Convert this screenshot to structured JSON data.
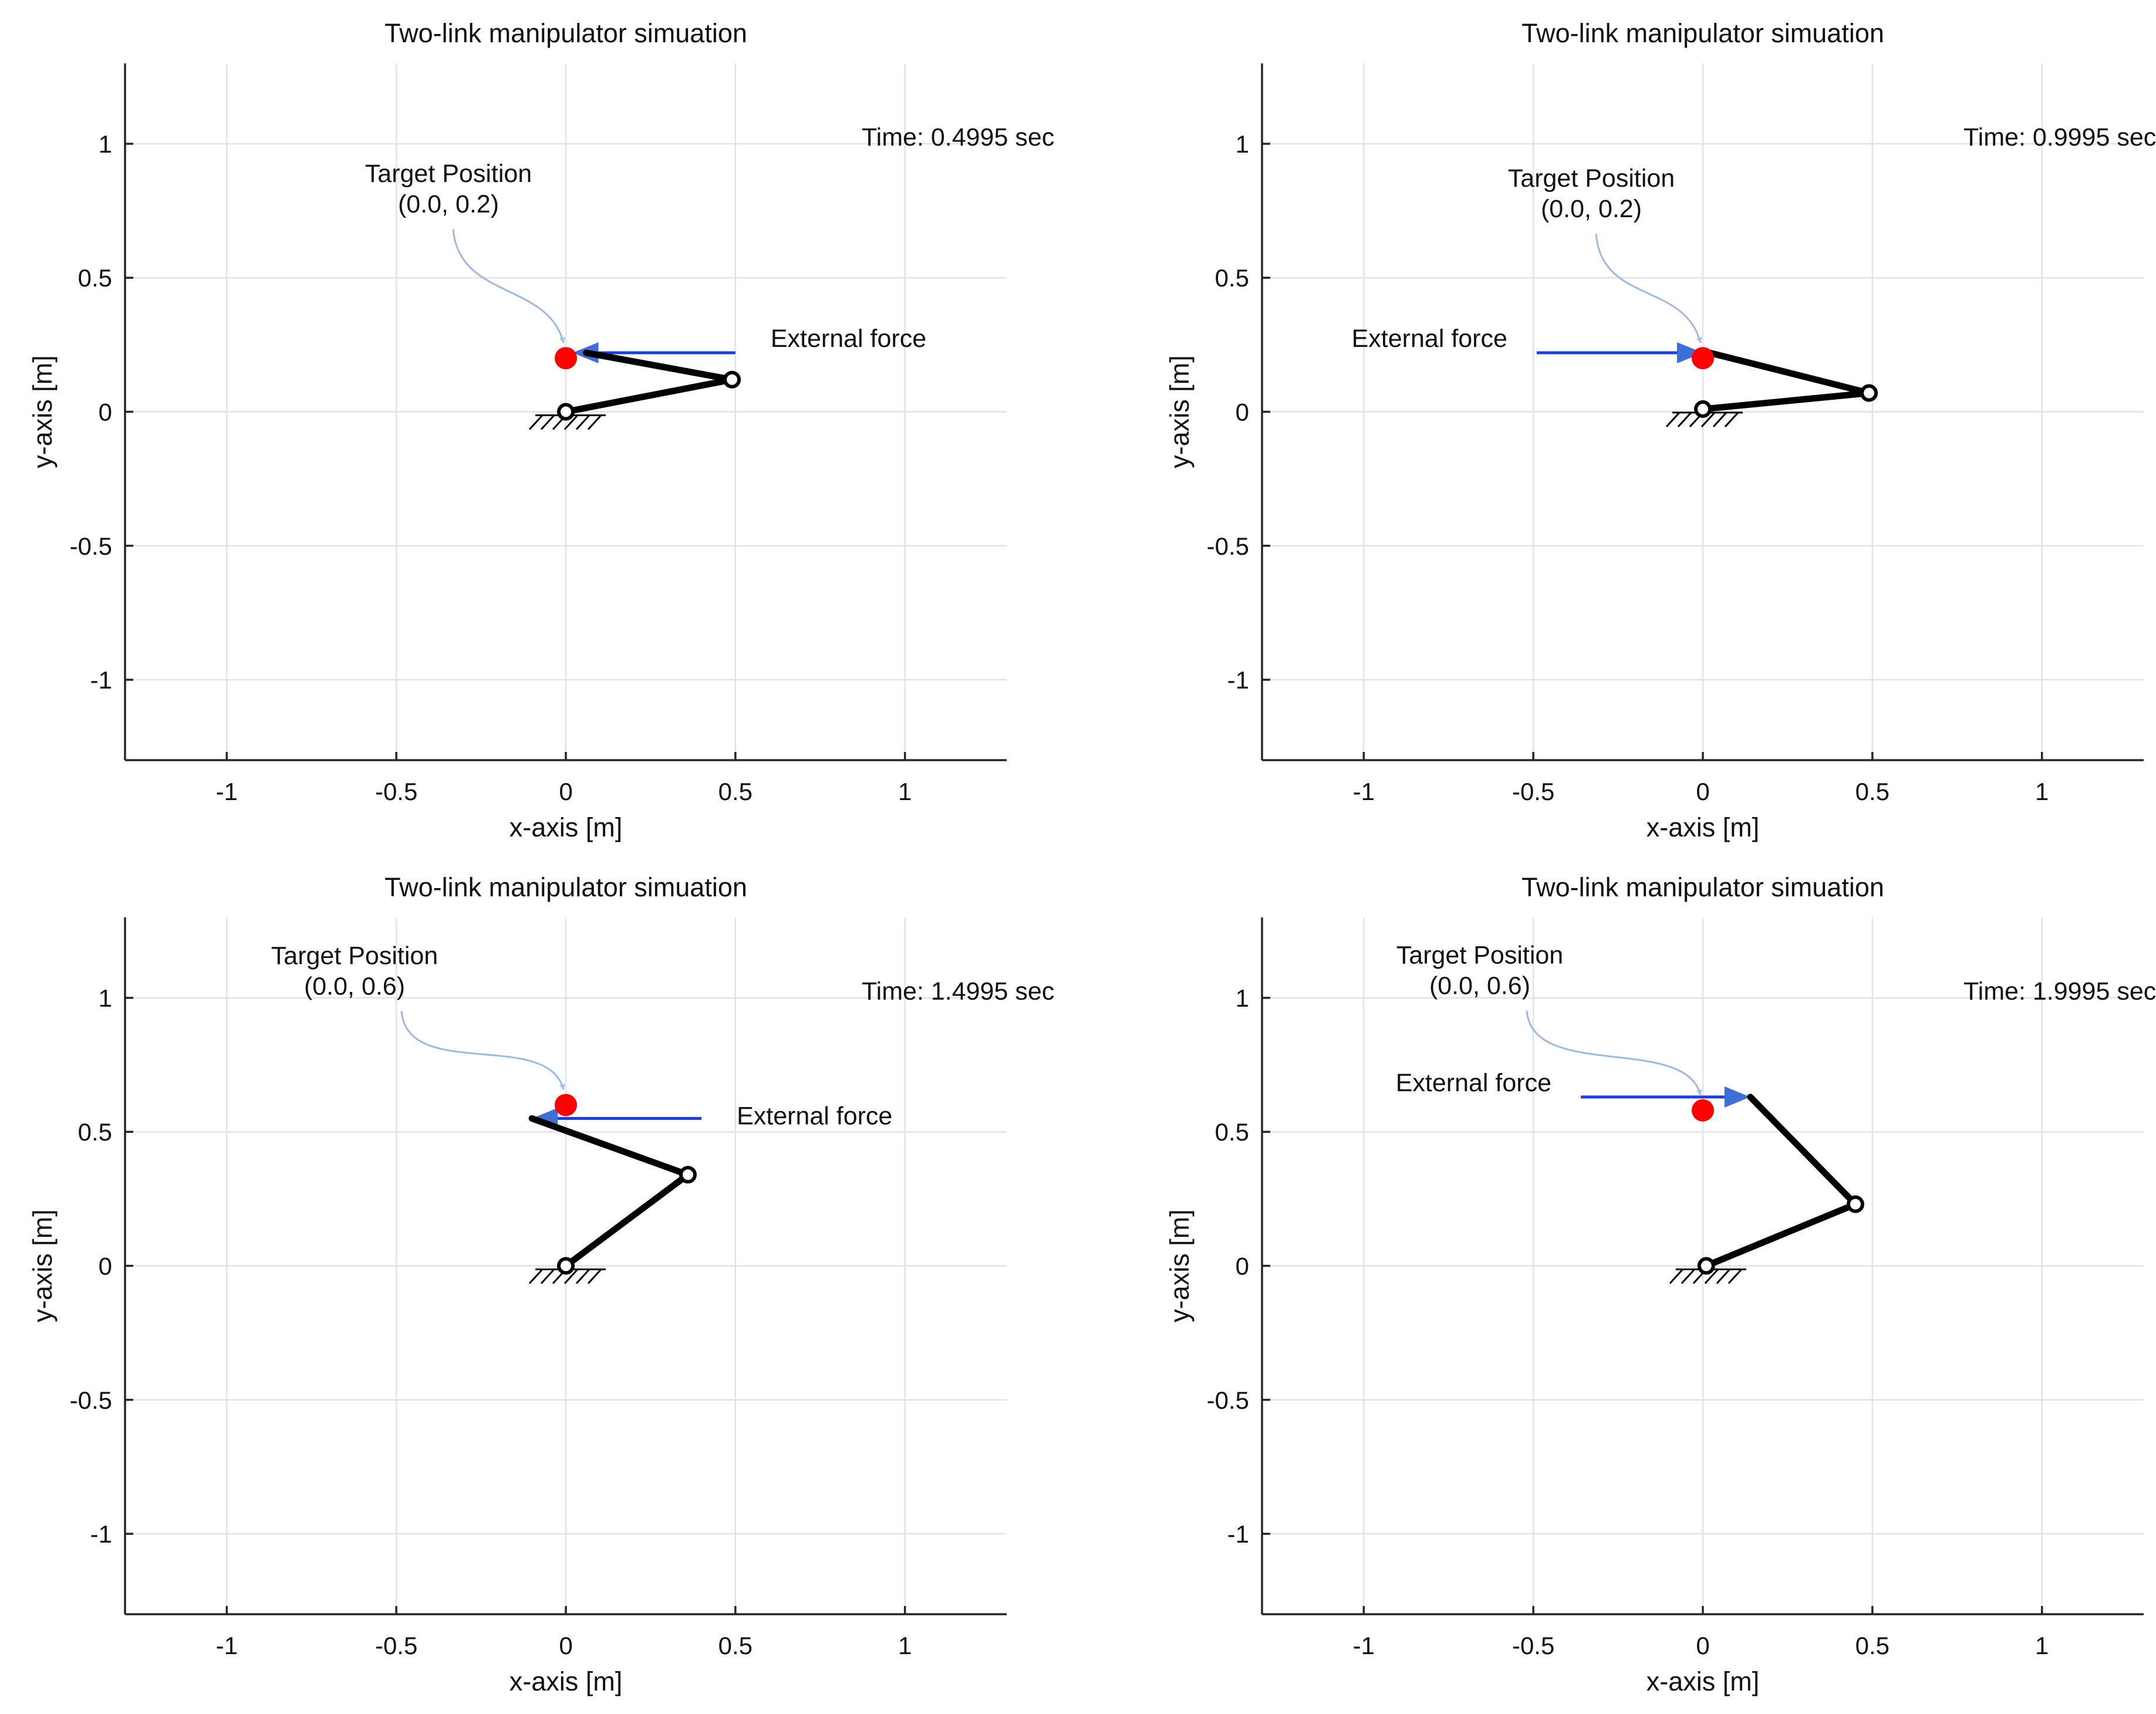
{
  "figure": {
    "title": "Two-link manipulator simuation"
  },
  "chart_data": [
    {
      "type": "line",
      "title": "Two-link manipulator simuation",
      "xlabel": "x-axis [m]",
      "ylabel": "y-axis [m]",
      "xlim": [
        -1.3,
        1.3
      ],
      "ylim": [
        -1.3,
        1.3
      ],
      "xticks": [
        -1,
        -0.5,
        0,
        0.5,
        1
      ],
      "yticks": [
        -1,
        -0.5,
        0,
        0.5,
        1
      ],
      "xtick_labels": [
        "-1",
        "-0.5",
        "0",
        "0.5",
        "1"
      ],
      "ytick_labels": [
        "-1",
        "-0.5",
        "0",
        "0.5",
        "1"
      ],
      "grid": true,
      "time_label": "Time: 0.4995 sec",
      "base": [
        0.0,
        0.0
      ],
      "joint": [
        0.49,
        0.12
      ],
      "end_effector": [
        0.06,
        0.22
      ],
      "target": {
        "x": 0.0,
        "y": 0.2,
        "label": "Target Position",
        "coords_label": "(0.0, 0.2)"
      },
      "force": {
        "from": [
          0.5,
          0.22
        ],
        "to": [
          0.02,
          0.22
        ],
        "label": "External force",
        "label_side": "right"
      }
    },
    {
      "type": "line",
      "title": "Two-link manipulator simuation",
      "xlabel": "x-axis [m]",
      "ylabel": "y-axis [m]",
      "xlim": [
        -1.3,
        1.3
      ],
      "ylim": [
        -1.3,
        1.3
      ],
      "xticks": [
        -1,
        -0.5,
        0,
        0.5,
        1
      ],
      "yticks": [
        -1,
        -0.5,
        0,
        0.5,
        1
      ],
      "xtick_labels": [
        "-1",
        "-0.5",
        "0",
        "0.5",
        "1"
      ],
      "ytick_labels": [
        "-1",
        "-0.5",
        "0",
        "0.5",
        "1"
      ],
      "grid": true,
      "time_label": "Time: 0.9995 sec",
      "base": [
        0.0,
        0.01
      ],
      "joint": [
        0.49,
        0.07
      ],
      "end_effector": [
        0.02,
        0.22
      ],
      "target": {
        "x": 0.0,
        "y": 0.2,
        "label": "Target Position",
        "coords_label": "(0.0, 0.2)"
      },
      "force": {
        "from": [
          -0.49,
          0.22
        ],
        "to": [
          0.0,
          0.22
        ],
        "label": "External force",
        "label_side": "left"
      }
    },
    {
      "type": "line",
      "title": "Two-link manipulator simuation",
      "xlabel": "x-axis [m]",
      "ylabel": "y-axis [m]",
      "xlim": [
        -1.3,
        1.3
      ],
      "ylim": [
        -1.3,
        1.3
      ],
      "xticks": [
        -1,
        -0.5,
        0,
        0.5,
        1
      ],
      "yticks": [
        -1,
        -0.5,
        0,
        0.5,
        1
      ],
      "xtick_labels": [
        "-1",
        "-0.5",
        "0",
        "0.5",
        "1"
      ],
      "ytick_labels": [
        "-1",
        "-0.5",
        "0",
        "0.5",
        "1"
      ],
      "grid": true,
      "time_label": "Time: 1.4995 sec",
      "base": [
        0.0,
        0.0
      ],
      "joint": [
        0.36,
        0.34
      ],
      "end_effector": [
        -0.1,
        0.55
      ],
      "target": {
        "x": 0.0,
        "y": 0.6,
        "label": "Target Position",
        "coords_label": "(0.0, 0.6)"
      },
      "force": {
        "from": [
          0.4,
          0.55
        ],
        "to": [
          -0.1,
          0.55
        ],
        "label": "External force",
        "label_side": "right"
      }
    },
    {
      "type": "line",
      "title": "Two-link manipulator simuation",
      "xlabel": "x-axis [m]",
      "ylabel": "y-axis [m]",
      "xlim": [
        -1.3,
        1.3
      ],
      "ylim": [
        -1.3,
        1.3
      ],
      "xticks": [
        -1,
        -0.5,
        0,
        0.5,
        1
      ],
      "yticks": [
        -1,
        -0.5,
        0,
        0.5,
        1
      ],
      "xtick_labels": [
        "-1",
        "-0.5",
        "0",
        "0.5",
        "1"
      ],
      "ytick_labels": [
        "-1",
        "-0.5",
        "0",
        "0.5",
        "1"
      ],
      "grid": true,
      "time_label": "Time: 1.9995 sec",
      "base": [
        0.01,
        0.0
      ],
      "joint": [
        0.45,
        0.23
      ],
      "end_effector": [
        0.14,
        0.63
      ],
      "target": {
        "x": 0.0,
        "y": 0.58,
        "label": "Target Position",
        "coords_label": "(0.0, 0.6)"
      },
      "force": {
        "from": [
          -0.36,
          0.63
        ],
        "to": [
          0.14,
          0.63
        ],
        "label": "External force",
        "label_side": "left"
      }
    }
  ],
  "colors": {
    "link": "#000000",
    "target": "#ff0000",
    "force": "#1f3fd0",
    "force_head": "#3f6fd6",
    "callout": "#9fb8df",
    "grid": "#e3e3e3",
    "axis": "#262626"
  }
}
